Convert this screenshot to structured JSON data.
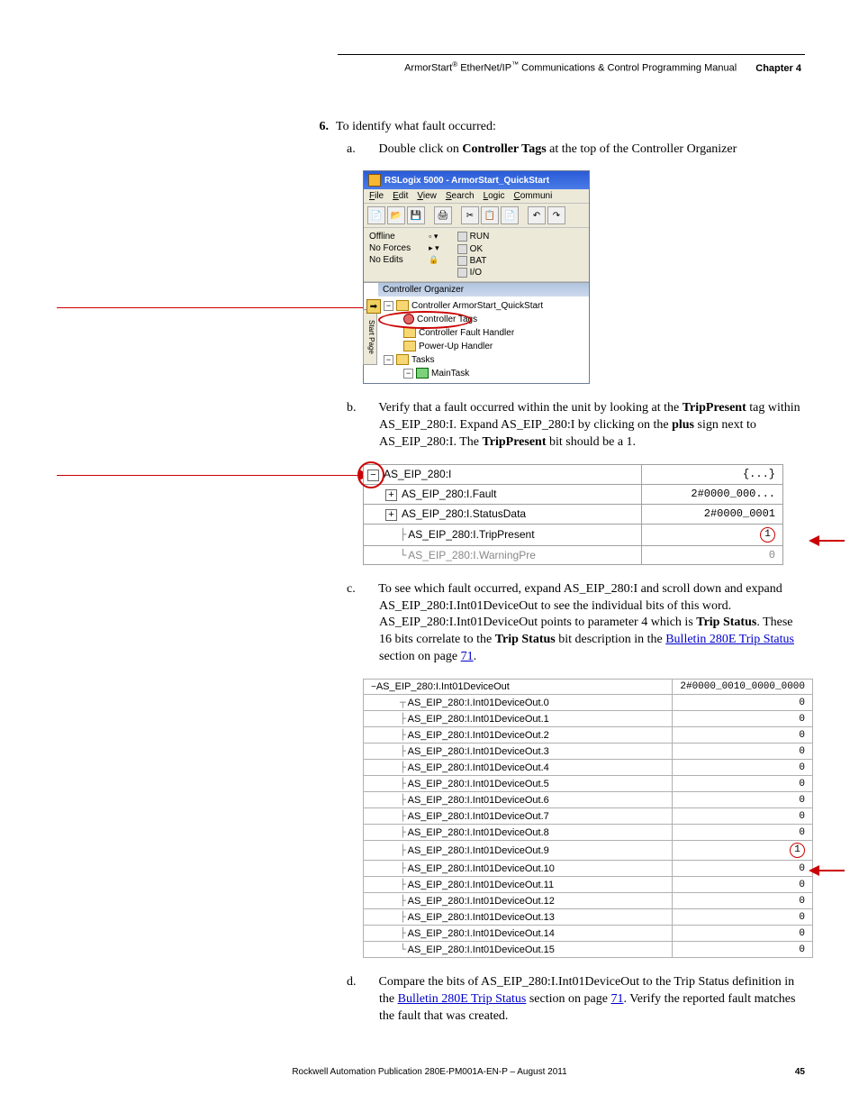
{
  "header": {
    "product": "ArmorStart",
    "reg1": "®",
    "mid": " EtherNet/IP",
    "tm": "™",
    "tail": " Communications & Control Programming Manual",
    "chapter": "Chapter 4"
  },
  "step6": {
    "num": "6.",
    "text": "To identify what fault occurred:"
  },
  "sub_a": {
    "label": "a.",
    "pre": "Double click on ",
    "bold": "Controller Tags",
    "post": " at the top of the Controller Organizer"
  },
  "rslogix": {
    "title": "RSLogix 5000 - ArmorStart_QuickStart",
    "menu": [
      "File",
      "Edit",
      "View",
      "Search",
      "Logic",
      "Communi"
    ],
    "offline": "Offline",
    "noforces": "No Forces",
    "noedits": "No Edits",
    "run": "RUN",
    "ok": "OK",
    "bat": "BAT",
    "io": "I/O",
    "organizer_header": "Controller Organizer",
    "tree": {
      "root": "Controller ArmorStart_QuickStart",
      "ctags": "Controller Tags",
      "fault": "Controller Fault Handler",
      "power": "Power-Up Handler",
      "tasks": "Tasks",
      "maintask": "MainTask"
    }
  },
  "sub_b": {
    "label": "b.",
    "t1": "Verify that a fault occurred within the unit by looking at the ",
    "b1": "TripPresent",
    "t2": " tag within AS_EIP_280:I. Expand AS_EIP_280:I by clicking on the ",
    "b2": "plus",
    "t3": " sign next to AS_EIP_280:I. The ",
    "b3": "TripPresent",
    "t4": " bit should be a 1."
  },
  "tagtable": {
    "rows": [
      {
        "pm": "−",
        "name": "AS_EIP_280:I",
        "val": "{...}",
        "indent": 0
      },
      {
        "pm": "+",
        "name": "AS_EIP_280:I.Fault",
        "val": "2#0000_000...",
        "indent": 1
      },
      {
        "pm": "+",
        "name": "AS_EIP_280:I.StatusData",
        "val": "2#0000_0001",
        "indent": 1
      },
      {
        "pm": "",
        "name": "AS_EIP_280:I.TripPresent",
        "val": "1",
        "indent": 2,
        "circle": true
      },
      {
        "pm": "",
        "name": "AS_EIP_280:I.WarningPre",
        "val": "0",
        "indent": 2,
        "cut": true
      }
    ]
  },
  "sub_c": {
    "label": "c.",
    "t1": "To see which fault occurred, expand AS_EIP_280:I and scroll down and expand AS_EIP_280:I.Int01DeviceOut to see the individual bits of this word. AS_EIP_280:I.Int01DeviceOut points to parameter 4 which is ",
    "b1": "Trip Status",
    "t2": ". These 16 bits correlate to the ",
    "b2": "Trip Status",
    "t3": " bit description in the ",
    "link": "Bulletin 280E Trip Status",
    "t4": " section on page ",
    "page": "71",
    "t5": "."
  },
  "bittable": {
    "header_name": "AS_EIP_280:I.Int01DeviceOut",
    "header_pm": "−",
    "header_val": "2#0000_0010_0000_0000",
    "prefix": "AS_EIP_280:I.Int01DeviceOut.",
    "values": [
      0,
      0,
      0,
      0,
      0,
      0,
      0,
      0,
      0,
      1,
      0,
      0,
      0,
      0,
      0,
      0
    ],
    "highlight_index": 9
  },
  "sub_d": {
    "label": "d.",
    "t1": "Compare the bits of AS_EIP_280:I.Int01DeviceOut to the Trip Status definition in the ",
    "link": "Bulletin 280E Trip Status",
    "t2": " section on page ",
    "page": "71",
    "t3": ". Verify the reported fault matches the fault that was created."
  },
  "footer": {
    "text": "Rockwell Automation Publication 280E-PM001A-EN-P – August 2011",
    "page": "45"
  },
  "colors": {
    "red": "#cc0000",
    "link": "#0000cc"
  }
}
